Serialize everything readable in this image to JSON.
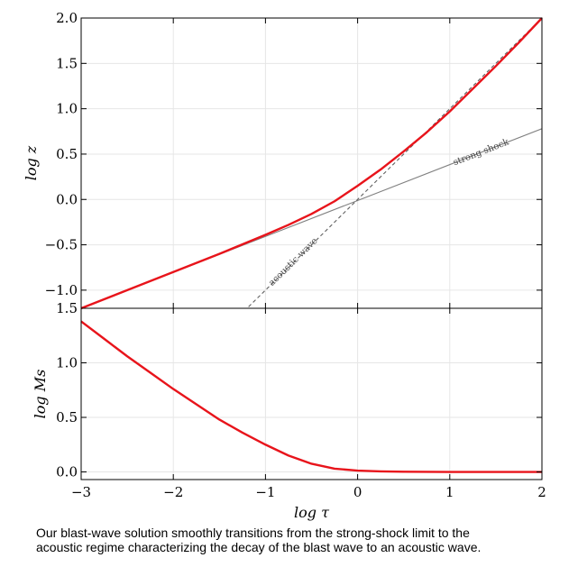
{
  "chart_data": [
    {
      "type": "line",
      "xlabel": "log τ",
      "ylabel": "log z",
      "xlim": [
        -3,
        2
      ],
      "ylim": [
        -1.2,
        2.0
      ],
      "xticks": [
        "−3",
        "−2",
        "−1",
        "0",
        "1",
        "2"
      ],
      "yticks": [
        "−1.0",
        "−0.5",
        "0.0",
        "0.5",
        "1.0",
        "1.5",
        "2.0"
      ],
      "grid": true,
      "series": [
        {
          "name": "",
          "color": "#e8141b",
          "x": [
            -3.0,
            -2.5,
            -2.0,
            -1.5,
            -1.0,
            -0.75,
            -0.5,
            -0.25,
            0.0,
            0.25,
            0.5,
            0.75,
            1.0,
            1.25,
            1.5,
            1.75,
            2.0
          ],
          "y": [
            -1.2,
            -1.0,
            -0.8,
            -0.6,
            -0.39,
            -0.28,
            -0.16,
            -0.02,
            0.15,
            0.33,
            0.53,
            0.74,
            0.97,
            1.22,
            1.47,
            1.73,
            2.0
          ]
        }
      ],
      "reference_lines": [
        {
          "label": "strong shock",
          "style": "solid",
          "color": "#808080",
          "x": [
            -3.0,
            2.0
          ],
          "y": [
            -1.2,
            0.78
          ]
        },
        {
          "label": "acoustic wave",
          "style": "dashed",
          "color": "#606060",
          "x": [
            -1.33,
            2.0
          ],
          "y": [
            -1.33,
            2.0
          ]
        }
      ]
    },
    {
      "type": "line",
      "xlabel": "log τ",
      "ylabel": "log Ms",
      "xlim": [
        -3,
        2
      ],
      "ylim": [
        -0.07,
        1.5
      ],
      "xticks": [
        "−3",
        "−2",
        "−1",
        "0",
        "1",
        "2"
      ],
      "yticks": [
        "0.0",
        "0.5",
        "1.0",
        "1.5"
      ],
      "grid": true,
      "series": [
        {
          "name": "",
          "color": "#e8141b",
          "x": [
            -3.0,
            -2.75,
            -2.5,
            -2.25,
            -2.0,
            -1.75,
            -1.5,
            -1.25,
            -1.0,
            -0.75,
            -0.5,
            -0.25,
            0.0,
            0.25,
            0.5,
            1.0,
            1.5,
            2.0
          ],
          "y": [
            1.38,
            1.22,
            1.06,
            0.91,
            0.76,
            0.62,
            0.48,
            0.36,
            0.25,
            0.15,
            0.075,
            0.03,
            0.012,
            0.005,
            0.002,
            0.0,
            0.0,
            0.0
          ]
        }
      ]
    }
  ],
  "caption": {
    "line1": "Our blast-wave solution smoothly transitions from the strong-shock limit to the",
    "line2": "acoustic regime characterizing the decay of the blast wave to an acoustic wave."
  }
}
